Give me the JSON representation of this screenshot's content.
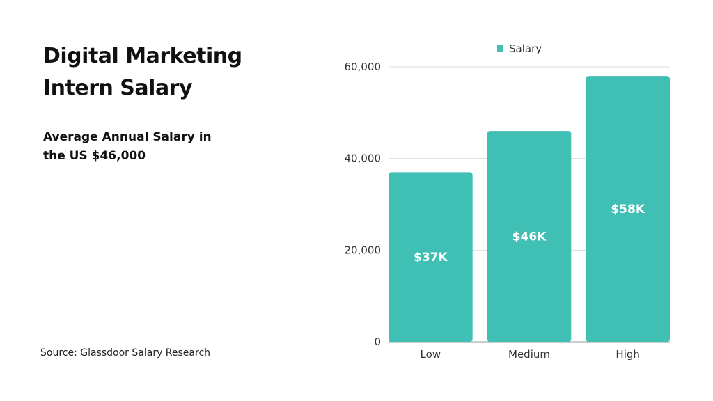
{
  "header": {
    "title_line1": "Digital Marketing",
    "title_line2": "Intern Salary",
    "subtitle": "Average Annual Salary in the US $46,000"
  },
  "footer": {
    "source": "Source: Glassdoor Salary Research"
  },
  "chart_data": {
    "type": "bar",
    "categories": [
      "Low",
      "Medium",
      "High"
    ],
    "series": [
      {
        "name": "Salary",
        "values": [
          37000,
          46000,
          58000
        ],
        "data_labels": [
          "$37K",
          "$46K",
          "$58K"
        ],
        "color": "#40bfb4"
      }
    ],
    "yticks": [
      0,
      20000,
      40000,
      60000
    ],
    "ytick_labels": [
      "0",
      "20,000",
      "40,000",
      "60,000"
    ],
    "ylim": [
      0,
      60000
    ],
    "grid": true,
    "legend": "top-center",
    "xlabel": "",
    "ylabel": ""
  }
}
